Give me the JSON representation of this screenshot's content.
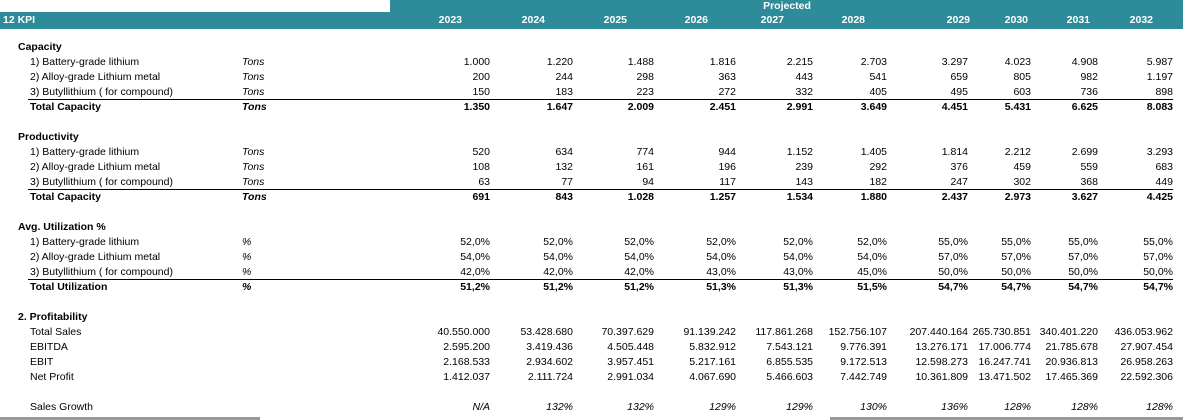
{
  "projected_label": "Projected",
  "kpi_label": "12 KPI",
  "years": [
    "2023",
    "2024",
    "2025",
    "2026",
    "2027",
    "2028",
    "2029",
    "2030",
    "2031",
    "2032"
  ],
  "sections": {
    "capacity": {
      "title": "Capacity",
      "rows": [
        {
          "label": "1) Battery-grade lithium",
          "unit": "Tons",
          "values": [
            "1.000",
            "1.220",
            "1.488",
            "1.816",
            "2.215",
            "2.703",
            "3.297",
            "4.023",
            "4.908",
            "5.987"
          ]
        },
        {
          "label": "2) Alloy-grade Lithium metal",
          "unit": "Tons",
          "values": [
            "200",
            "244",
            "298",
            "363",
            "443",
            "541",
            "659",
            "805",
            "982",
            "1.197"
          ]
        },
        {
          "label": "3) Butyllithium ( for compound)",
          "unit": "Tons",
          "values": [
            "150",
            "183",
            "223",
            "272",
            "332",
            "405",
            "495",
            "603",
            "736",
            "898"
          ]
        }
      ],
      "total": {
        "label": "Total Capacity",
        "unit": "Tons",
        "values": [
          "1.350",
          "1.647",
          "2.009",
          "2.451",
          "2.991",
          "3.649",
          "4.451",
          "5.431",
          "6.625",
          "8.083"
        ]
      }
    },
    "productivity": {
      "title": "Productivity",
      "rows": [
        {
          "label": "1) Battery-grade lithium",
          "unit": "Tons",
          "values": [
            "520",
            "634",
            "774",
            "944",
            "1.152",
            "1.405",
            "1.814",
            "2.212",
            "2.699",
            "3.293"
          ]
        },
        {
          "label": "2) Alloy-grade Lithium metal",
          "unit": "Tons",
          "values": [
            "108",
            "132",
            "161",
            "196",
            "239",
            "292",
            "376",
            "459",
            "559",
            "683"
          ]
        },
        {
          "label": "3) Butyllithium ( for compound)",
          "unit": "Tons",
          "values": [
            "63",
            "77",
            "94",
            "117",
            "143",
            "182",
            "247",
            "302",
            "368",
            "449"
          ]
        }
      ],
      "total": {
        "label": "Total Capacity",
        "unit": "Tons",
        "values": [
          "691",
          "843",
          "1.028",
          "1.257",
          "1.534",
          "1.880",
          "2.437",
          "2.973",
          "3.627",
          "4.425"
        ]
      }
    },
    "utilization": {
      "title": "Avg. Utilization %",
      "rows": [
        {
          "label": "1) Battery-grade lithium",
          "unit": "%",
          "values": [
            "52,0%",
            "52,0%",
            "52,0%",
            "52,0%",
            "52,0%",
            "52,0%",
            "55,0%",
            "55,0%",
            "55,0%",
            "55,0%"
          ]
        },
        {
          "label": "2) Alloy-grade Lithium metal",
          "unit": "%",
          "values": [
            "54,0%",
            "54,0%",
            "54,0%",
            "54,0%",
            "54,0%",
            "54,0%",
            "57,0%",
            "57,0%",
            "57,0%",
            "57,0%"
          ]
        },
        {
          "label": "3) Butyllithium ( for compound)",
          "unit": "%",
          "values": [
            "42,0%",
            "42,0%",
            "42,0%",
            "43,0%",
            "43,0%",
            "45,0%",
            "50,0%",
            "50,0%",
            "50,0%",
            "50,0%"
          ]
        }
      ],
      "total": {
        "label": "Total Utilization",
        "unit": "%",
        "values": [
          "51,2%",
          "51,2%",
          "51,2%",
          "51,3%",
          "51,3%",
          "51,5%",
          "54,7%",
          "54,7%",
          "54,7%",
          "54,7%"
        ]
      }
    },
    "profitability": {
      "title": "2. Profitability",
      "rows": [
        {
          "label": "Total Sales",
          "values": [
            "40.550.000",
            "53.428.680",
            "70.397.629",
            "91.139.242",
            "117.861.268",
            "152.756.107",
            "207.440.164",
            "265.730.851",
            "340.401.220",
            "436.053.962"
          ]
        },
        {
          "label": "EBITDA",
          "values": [
            "2.595.200",
            "3.419.436",
            "4.505.448",
            "5.832.912",
            "7.543.121",
            "9.776.391",
            "13.276.171",
            "17.006.774",
            "21.785.678",
            "27.907.454"
          ]
        },
        {
          "label": "EBIT",
          "values": [
            "2.168.533",
            "2.934.602",
            "3.957.451",
            "5.217.161",
            "6.855.535",
            "9.172.513",
            "12.598.273",
            "16.247.741",
            "20.936.813",
            "26.958.263"
          ]
        },
        {
          "label": "Net Profit",
          "values": [
            "1.412.037",
            "2.111.724",
            "2.991.034",
            "4.067.690",
            "5.466.603",
            "7.442.749",
            "10.361.809",
            "13.471.502",
            "17.465.369",
            "22.592.306"
          ]
        }
      ]
    },
    "growth": {
      "label": "Sales Growth",
      "values": [
        "N/A",
        "132%",
        "132%",
        "129%",
        "129%",
        "130%",
        "136%",
        "128%",
        "128%",
        "128%"
      ]
    }
  }
}
